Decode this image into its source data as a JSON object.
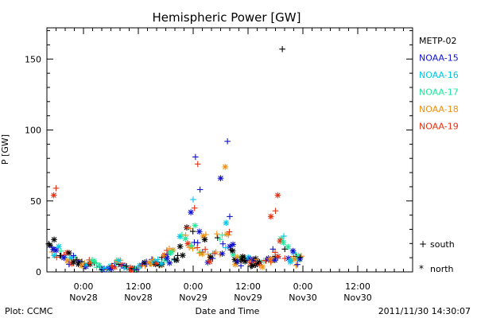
{
  "chart_data": {
    "type": "scatter",
    "title": "Hemispheric Power [GW]",
    "ylabel": "P [GW]",
    "xlabel": "Date and Time",
    "ylim": [
      0,
      172
    ],
    "yticks": [
      0,
      50,
      100,
      150
    ],
    "xlim_hours": [
      -8,
      72
    ],
    "xticks": [
      {
        "h": 0,
        "time": "0:00",
        "date": "Nov28"
      },
      {
        "h": 12,
        "time": "12:00",
        "date": "Nov28"
      },
      {
        "h": 24,
        "time": "0:00",
        "date": "Nov29"
      },
      {
        "h": 36,
        "time": "12:00",
        "date": "Nov29"
      },
      {
        "h": 48,
        "time": "0:00",
        "date": "Nov30"
      },
      {
        "h": 60,
        "time": "12:00",
        "date": "Nov30"
      }
    ],
    "series": [
      {
        "name": "METP-02",
        "color": "#000000"
      },
      {
        "name": "NOAA-15",
        "color": "#1010d0"
      },
      {
        "name": "NOAA-16",
        "color": "#00c8e8"
      },
      {
        "name": "NOAA-17",
        "color": "#22e89a"
      },
      {
        "name": "NOAA-18",
        "color": "#f09010"
      },
      {
        "name": "NOAA-19",
        "color": "#e83010"
      }
    ],
    "marker_legend": [
      {
        "symbol": "+",
        "label": "south"
      },
      {
        "symbol": "*",
        "label": "north"
      }
    ],
    "highlighted_points": [
      {
        "series": "METP-02",
        "hour": 43.5,
        "value": 157,
        "marker": "+"
      },
      {
        "series": "NOAA-15",
        "hour": 31.5,
        "value": 92,
        "marker": "+"
      },
      {
        "series": "NOAA-15",
        "hour": 24.5,
        "value": 81,
        "marker": "+"
      },
      {
        "series": "NOAA-19",
        "hour": 25.0,
        "value": 76,
        "marker": "+"
      },
      {
        "series": "NOAA-18",
        "hour": 31.0,
        "value": 74,
        "marker": "*"
      },
      {
        "series": "NOAA-15",
        "hour": 30.0,
        "value": 66,
        "marker": "*"
      },
      {
        "series": "NOAA-19",
        "hour": -6.0,
        "value": 59,
        "marker": "+"
      },
      {
        "series": "NOAA-15",
        "hour": 25.5,
        "value": 58,
        "marker": "+"
      },
      {
        "series": "NOAA-19",
        "hour": -6.5,
        "value": 54,
        "marker": "*"
      },
      {
        "series": "NOAA-19",
        "hour": 42.5,
        "value": 54,
        "marker": "*"
      },
      {
        "series": "NOAA-16",
        "hour": 24.0,
        "value": 51,
        "marker": "+"
      },
      {
        "series": "NOAA-19",
        "hour": 24.3,
        "value": 45,
        "marker": "+"
      },
      {
        "series": "NOAA-15",
        "hour": 23.5,
        "value": 42,
        "marker": "*"
      },
      {
        "series": "NOAA-19",
        "hour": 42.0,
        "value": 43,
        "marker": "+"
      },
      {
        "series": "NOAA-19",
        "hour": 41.0,
        "value": 39,
        "marker": "*"
      },
      {
        "series": "NOAA-15",
        "hour": 32.0,
        "value": 39,
        "marker": "+"
      }
    ]
  },
  "footer": {
    "left": "Plot: CCMC",
    "center": "Date and Time",
    "right": "2011/11/30 14:30:07"
  }
}
